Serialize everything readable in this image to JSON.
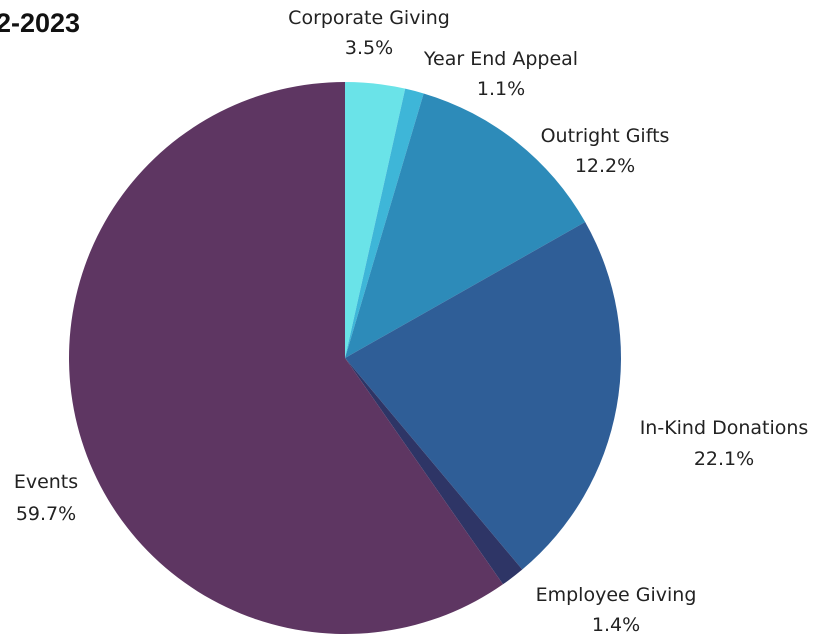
{
  "chart_data": {
    "type": "pie",
    "title": "2-2023",
    "slices": [
      {
        "label": "Corporate Giving",
        "value": 3.5,
        "display": "3.5%",
        "color": "#6ae3e8"
      },
      {
        "label": "Year End Appeal",
        "value": 1.1,
        "display": "1.1%",
        "color": "#3eb6d8"
      },
      {
        "label": "Outright Gifts",
        "value": 12.2,
        "display": "12.2%",
        "color": "#2d8bb9"
      },
      {
        "label": "In-Kind Donations",
        "value": 22.1,
        "display": "22.1%",
        "color": "#2f5e97"
      },
      {
        "label": "Employee Giving",
        "value": 1.4,
        "display": "1.4%",
        "color": "#2e3566"
      },
      {
        "label": "Events",
        "value": 59.7,
        "display": "59.7%",
        "color": "#5e3662"
      }
    ]
  }
}
